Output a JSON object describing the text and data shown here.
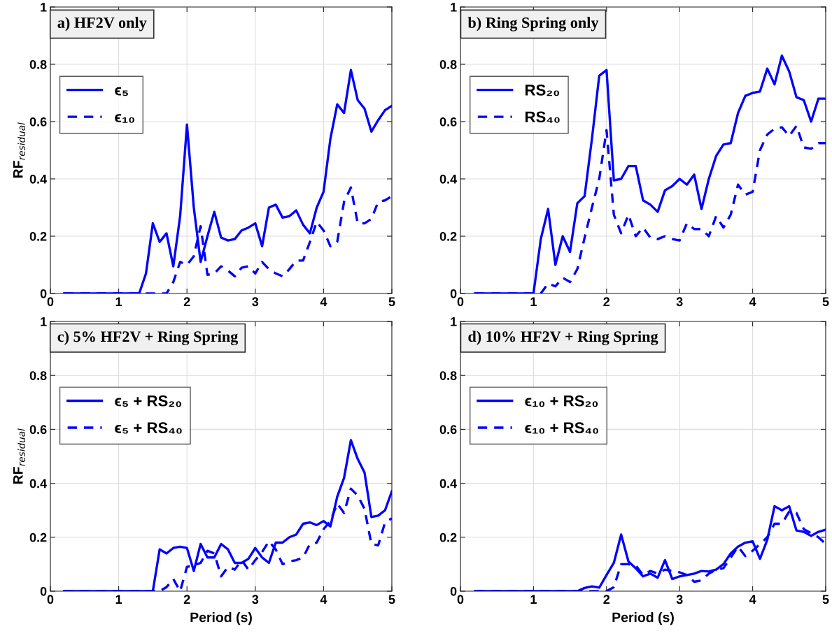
{
  "chart_data": [
    {
      "type": "line",
      "title": "a) HF2V only",
      "ylabel": "RF$_{residual}$",
      "xlim": [
        0,
        5
      ],
      "ylim": [
        0,
        1
      ],
      "xticks": [
        0,
        1,
        2,
        3,
        4,
        5
      ],
      "yticks": [
        0,
        0.2,
        0.4,
        0.6,
        0.8,
        1
      ],
      "grid": true,
      "legend": "top left",
      "x": [
        0.2,
        0.3,
        0.4,
        0.5,
        0.6,
        0.7,
        0.8,
        0.9,
        1.0,
        1.1,
        1.2,
        1.3,
        1.4,
        1.5,
        1.6,
        1.7,
        1.8,
        1.9,
        2.0,
        2.1,
        2.2,
        2.3,
        2.4,
        2.5,
        2.6,
        2.7,
        2.8,
        2.9,
        3.0,
        3.1,
        3.2,
        3.3,
        3.4,
        3.5,
        3.6,
        3.7,
        3.8,
        3.9,
        4.0,
        4.1,
        4.2,
        4.3,
        4.4,
        4.5,
        4.6,
        4.7,
        4.8,
        4.9,
        5.0
      ],
      "series": [
        {
          "name": "ϵ₅",
          "color": "#0000ff",
          "line_style": "solid",
          "values": [
            0,
            0,
            0,
            0,
            0,
            0,
            0,
            0,
            0,
            0,
            0,
            0,
            0.07,
            0.245,
            0.18,
            0.21,
            0.095,
            0.27,
            0.59,
            0.3,
            0.11,
            0.2,
            0.285,
            0.195,
            0.185,
            0.19,
            0.22,
            0.23,
            0.245,
            0.165,
            0.3,
            0.31,
            0.265,
            0.27,
            0.29,
            0.24,
            0.21,
            0.3,
            0.355,
            0.54,
            0.66,
            0.63,
            0.78,
            0.675,
            0.645,
            0.565,
            0.605,
            0.64,
            0.655
          ]
        },
        {
          "name": "ϵ₁₀",
          "color": "#0000ff",
          "line_style": "dashed",
          "values": [
            0,
            0,
            0,
            0,
            0,
            0,
            0,
            0,
            0,
            0,
            0,
            0,
            0,
            0,
            0,
            0,
            0.04,
            0.11,
            0.1,
            0.13,
            0.235,
            0.065,
            0.07,
            0.095,
            0.08,
            0.06,
            0.09,
            0.095,
            0.07,
            0.11,
            0.085,
            0.07,
            0.06,
            0.085,
            0.115,
            0.115,
            0.18,
            0.25,
            0.22,
            0.165,
            0.18,
            0.32,
            0.37,
            0.245,
            0.245,
            0.26,
            0.32,
            0.325,
            0.34
          ]
        }
      ]
    },
    {
      "type": "line",
      "title": "b) Ring Spring only",
      "xlim": [
        0,
        5
      ],
      "ylim": [
        0,
        1
      ],
      "xticks": [
        0,
        1,
        2,
        3,
        4,
        5
      ],
      "yticks": [
        0,
        0.2,
        0.4,
        0.6,
        0.8,
        1
      ],
      "grid": true,
      "legend": "top left",
      "x": [
        0.2,
        0.3,
        0.4,
        0.5,
        0.6,
        0.7,
        0.8,
        0.9,
        1.0,
        1.1,
        1.2,
        1.3,
        1.4,
        1.5,
        1.6,
        1.7,
        1.8,
        1.9,
        2.0,
        2.1,
        2.2,
        2.3,
        2.4,
        2.5,
        2.6,
        2.7,
        2.8,
        2.9,
        3.0,
        3.1,
        3.2,
        3.3,
        3.4,
        3.5,
        3.6,
        3.7,
        3.8,
        3.9,
        4.0,
        4.1,
        4.2,
        4.3,
        4.4,
        4.5,
        4.6,
        4.7,
        4.8,
        4.9,
        5.0
      ],
      "series": [
        {
          "name": "RS₂₀",
          "color": "#0000ff",
          "line_style": "solid",
          "values": [
            0,
            0,
            0,
            0,
            0,
            0,
            0,
            0,
            0,
            0.19,
            0.295,
            0.1,
            0.2,
            0.145,
            0.315,
            0.34,
            0.54,
            0.76,
            0.78,
            0.395,
            0.4,
            0.445,
            0.445,
            0.325,
            0.31,
            0.285,
            0.36,
            0.375,
            0.4,
            0.38,
            0.415,
            0.295,
            0.4,
            0.48,
            0.52,
            0.525,
            0.63,
            0.69,
            0.7,
            0.705,
            0.785,
            0.73,
            0.83,
            0.775,
            0.685,
            0.675,
            0.6,
            0.68,
            0.68
          ]
        },
        {
          "name": "RS₄₀",
          "color": "#0000ff",
          "line_style": "dashed",
          "values": [
            0,
            0,
            0,
            0,
            0,
            0,
            0,
            0,
            0,
            0,
            0.035,
            0.025,
            0.055,
            0.04,
            0.085,
            0.195,
            0.3,
            0.4,
            0.57,
            0.275,
            0.21,
            0.275,
            0.2,
            0.23,
            0.195,
            0.19,
            0.2,
            0.19,
            0.185,
            0.245,
            0.225,
            0.225,
            0.2,
            0.27,
            0.23,
            0.275,
            0.38,
            0.345,
            0.355,
            0.5,
            0.555,
            0.575,
            0.58,
            0.55,
            0.585,
            0.51,
            0.505,
            0.525,
            0.525
          ]
        }
      ]
    },
    {
      "type": "line",
      "title": "c) 5% HF2V + Ring Spring",
      "ylabel": "RF$_{residual}$",
      "xlabel": "Period (s)",
      "xlim": [
        0,
        5
      ],
      "ylim": [
        0,
        1
      ],
      "xticks": [
        0,
        1,
        2,
        3,
        4,
        5
      ],
      "yticks": [
        0,
        0.2,
        0.4,
        0.6,
        0.8,
        1
      ],
      "grid": true,
      "legend": "top left",
      "x": [
        0.2,
        0.3,
        0.4,
        0.5,
        0.6,
        0.7,
        0.8,
        0.9,
        1.0,
        1.1,
        1.2,
        1.3,
        1.4,
        1.5,
        1.6,
        1.7,
        1.8,
        1.9,
        2.0,
        2.1,
        2.2,
        2.3,
        2.4,
        2.5,
        2.6,
        2.7,
        2.8,
        2.9,
        3.0,
        3.1,
        3.2,
        3.3,
        3.4,
        3.5,
        3.6,
        3.7,
        3.8,
        3.9,
        4.0,
        4.1,
        4.2,
        4.3,
        4.4,
        4.5,
        4.6,
        4.7,
        4.8,
        4.9,
        5.0
      ],
      "series": [
        {
          "name": "ϵ₅ + RS₂₀",
          "color": "#0000ff",
          "line_style": "solid",
          "values": [
            0,
            0,
            0,
            0,
            0,
            0,
            0,
            0,
            0,
            0,
            0,
            0,
            0,
            0,
            0.155,
            0.14,
            0.16,
            0.165,
            0.16,
            0.075,
            0.175,
            0.125,
            0.125,
            0.175,
            0.155,
            0.105,
            0.105,
            0.12,
            0.16,
            0.125,
            0.105,
            0.18,
            0.18,
            0.2,
            0.21,
            0.25,
            0.255,
            0.245,
            0.26,
            0.24,
            0.35,
            0.42,
            0.56,
            0.49,
            0.44,
            0.275,
            0.28,
            0.3,
            0.37
          ]
        },
        {
          "name": "ϵ₅ + RS₄₀",
          "color": "#0000ff",
          "line_style": "dashed",
          "values": [
            0,
            0,
            0,
            0,
            0,
            0,
            0,
            0,
            0,
            0,
            0,
            0,
            0,
            0,
            0,
            0.015,
            0.045,
            0,
            0.09,
            0.095,
            0.105,
            0.15,
            0.14,
            0.055,
            0.09,
            0.08,
            0.115,
            0.08,
            0.115,
            0.145,
            0.185,
            0.155,
            0.1,
            0.11,
            0.115,
            0.125,
            0.175,
            0.18,
            0.23,
            0.26,
            0.325,
            0.29,
            0.38,
            0.355,
            0.305,
            0.175,
            0.17,
            0.255,
            0.27
          ]
        }
      ]
    },
    {
      "type": "line",
      "title": "d) 10% HF2V + Ring Spring",
      "xlabel": "Period (s)",
      "xlim": [
        0,
        5
      ],
      "ylim": [
        0,
        1
      ],
      "xticks": [
        0,
        1,
        2,
        3,
        4,
        5
      ],
      "yticks": [
        0,
        0.2,
        0.4,
        0.6,
        0.8,
        1
      ],
      "grid": true,
      "legend": "top left",
      "x": [
        0.2,
        0.3,
        0.4,
        0.5,
        0.6,
        0.7,
        0.8,
        0.9,
        1.0,
        1.1,
        1.2,
        1.3,
        1.4,
        1.5,
        1.6,
        1.7,
        1.8,
        1.9,
        2.0,
        2.1,
        2.2,
        2.3,
        2.4,
        2.5,
        2.6,
        2.7,
        2.8,
        2.9,
        3.0,
        3.1,
        3.2,
        3.3,
        3.4,
        3.5,
        3.6,
        3.7,
        3.8,
        3.9,
        4.0,
        4.1,
        4.2,
        4.3,
        4.4,
        4.5,
        4.6,
        4.7,
        4.8,
        4.9,
        5.0
      ],
      "series": [
        {
          "name": "ϵ₁₀ + RS₂₀",
          "color": "#0000ff",
          "line_style": "solid",
          "values": [
            0,
            0,
            0,
            0,
            0,
            0,
            0,
            0,
            0,
            0,
            0,
            0,
            0,
            0,
            0,
            0.012,
            0.018,
            0.013,
            0.06,
            0.105,
            0.21,
            0.11,
            0.085,
            0.055,
            0.065,
            0.05,
            0.115,
            0.045,
            0.055,
            0.06,
            0.065,
            0.075,
            0.073,
            0.08,
            0.1,
            0.14,
            0.165,
            0.18,
            0.185,
            0.12,
            0.19,
            0.315,
            0.3,
            0.315,
            0.225,
            0.22,
            0.205,
            0.22,
            0.228
          ]
        },
        {
          "name": "ϵ₁₀ + RS₄₀",
          "color": "#0000ff",
          "line_style": "dashed",
          "values": [
            0,
            0,
            0,
            0,
            0,
            0,
            0,
            0,
            0,
            0,
            0,
            0,
            0,
            0,
            0,
            0,
            0,
            0,
            0,
            0.015,
            0.1,
            0.1,
            0.095,
            0.06,
            0.075,
            0.065,
            0.08,
            0.075,
            0.07,
            0.06,
            0.035,
            0.04,
            0.065,
            0.08,
            0.085,
            0.125,
            0.165,
            0.13,
            0.15,
            0.175,
            0.2,
            0.25,
            0.25,
            0.295,
            0.29,
            0.23,
            0.215,
            0.2,
            0.175
          ]
        }
      ]
    }
  ]
}
